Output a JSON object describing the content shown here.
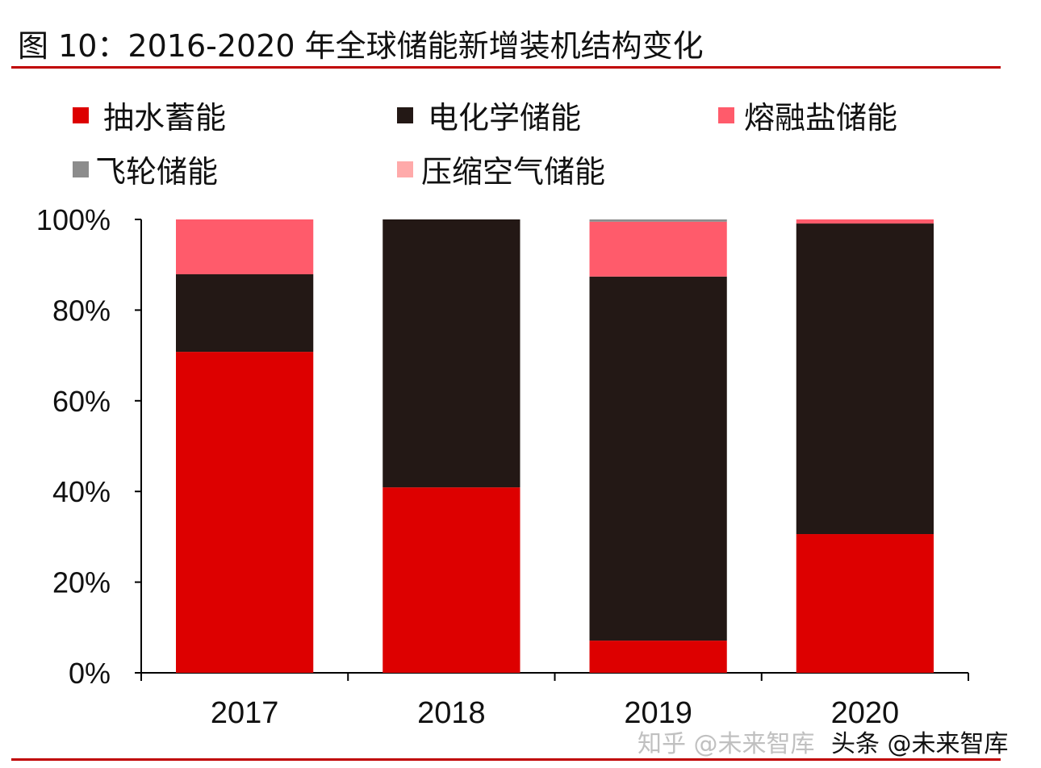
{
  "chart_data": {
    "type": "bar",
    "stacked": true,
    "title": "图 10：2016-2020 年全球储能新增装机结构变化",
    "categories": [
      "2017",
      "2018",
      "2019",
      "2020"
    ],
    "series": [
      {
        "name": "抽水蓄能",
        "color": "#dd0000",
        "values": [
          70.8,
          40.9,
          7.1,
          30.6
        ]
      },
      {
        "name": "电化学储能",
        "color": "#231815",
        "values": [
          17.1,
          59.1,
          80.3,
          68.5
        ]
      },
      {
        "name": "熔融盐储能",
        "color": "#ff5b6b",
        "values": [
          12.1,
          0,
          12.1,
          0.9
        ]
      },
      {
        "name": "飞轮储能",
        "color": "#8c8c8c",
        "values": [
          0,
          0,
          0.5,
          0
        ]
      },
      {
        "name": "压缩空气储能",
        "color": "#ffaaaa",
        "values": [
          0,
          0,
          0,
          0
        ]
      }
    ],
    "ylim": [
      0,
      100
    ],
    "yticks": [
      "0%",
      "20%",
      "40%",
      "60%",
      "80%",
      "100%"
    ],
    "grid": false,
    "legend": "top"
  },
  "watermark": [
    "知乎 @未来智库",
    "头条 @未来智库"
  ]
}
